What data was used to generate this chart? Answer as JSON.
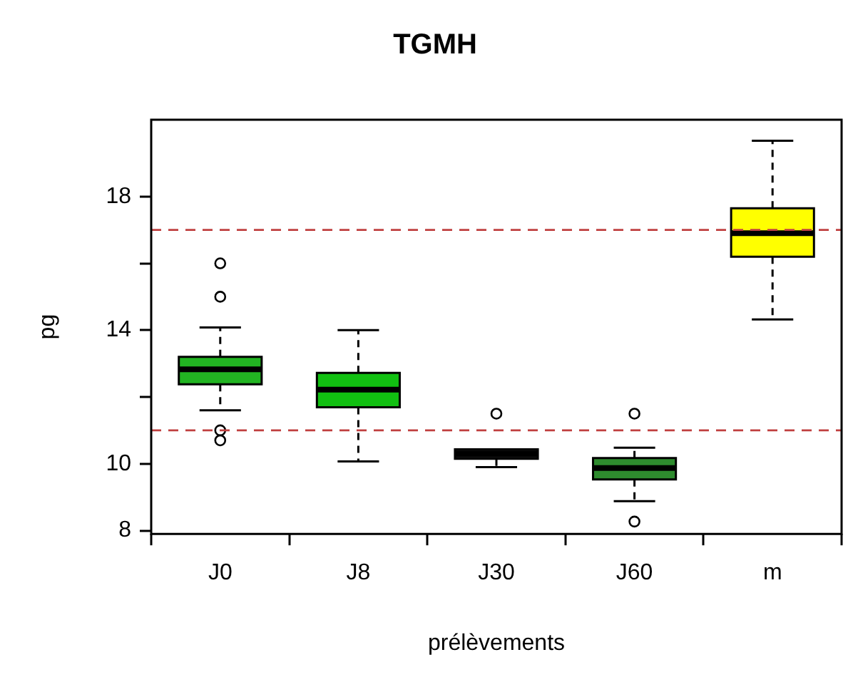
{
  "chart_data": {
    "type": "box",
    "title": "TGMH",
    "xlabel": "prélèvements",
    "ylabel": "pg",
    "categories": [
      "J0",
      "J8",
      "J30",
      "J60",
      "m"
    ],
    "colors": [
      "#22b422",
      "#11c011",
      "#101010",
      "#2e8b2e",
      "#ffff00"
    ],
    "boxes": [
      {
        "low": 11.6,
        "q1": 12.38,
        "median": 12.83,
        "q3": 13.2,
        "high": 14.08,
        "outliers": [
          16.0,
          15.0,
          11.0,
          10.7
        ]
      },
      {
        "low": 10.07,
        "q1": 11.69,
        "median": 12.22,
        "q3": 12.72,
        "high": 14.0
      },
      {
        "low": 9.9,
        "q1": 10.15,
        "median": 10.3,
        "q3": 10.43,
        "high": 10.43,
        "outliers": [
          11.5
        ]
      },
      {
        "low": 8.88,
        "q1": 9.53,
        "median": 9.87,
        "q3": 10.17,
        "high": 10.48,
        "outliers": [
          11.5,
          8.27
        ]
      },
      {
        "low": 14.32,
        "q1": 16.2,
        "median": 16.9,
        "q3": 17.65,
        "high": 19.67
      }
    ],
    "ylim": [
      7.9,
      20.3
    ],
    "yticks": [
      8,
      10,
      {
        "value": 12,
        "label": null
      },
      14,
      {
        "value": 16,
        "label": null
      },
      18
    ],
    "ref_lines": [
      {
        "axis": "y",
        "value": 17,
        "color": "#c04040",
        "line_style": "dashed"
      },
      {
        "axis": "y",
        "value": 11,
        "color": "#c04040",
        "line_style": "dashed"
      }
    ],
    "grid": false,
    "legend": false
  }
}
